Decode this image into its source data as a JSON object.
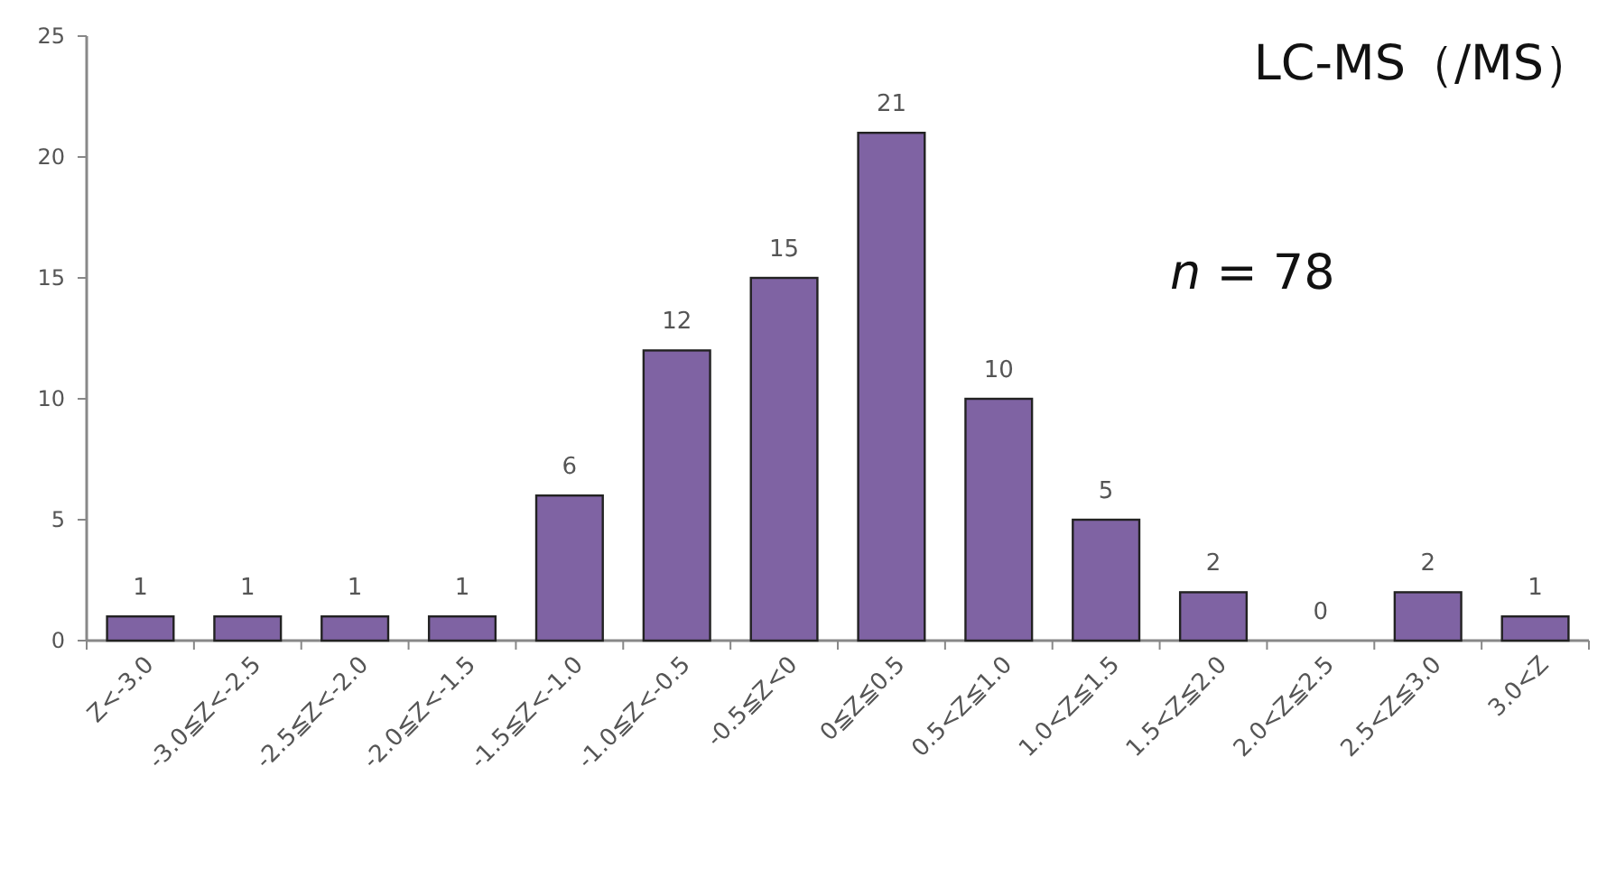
{
  "chart_data": {
    "type": "bar",
    "title": "LC-MS（/MS）",
    "annotations": [
      "*n* = 78"
    ],
    "categories": [
      "Z<-3.0",
      "-3.0≦Z<-2.5",
      "-2.5≦Z<-2.0",
      "-2.0≦Z<-1.5",
      "-1.5≦Z<-1.0",
      "-1.0≦Z<-0.5",
      "-0.5≦Z<0",
      "0≦Z≦0.5",
      "0.5<Z≦1.0",
      "1.0<Z≦1.5",
      "1.5<Z≦2.0",
      "2.0<Z≦2.5",
      "2.5<Z≦3.0",
      "3.0<Z"
    ],
    "values": [
      1,
      1,
      1,
      1,
      6,
      12,
      15,
      21,
      10,
      5,
      2,
      0,
      2,
      1
    ],
    "color": "#7f63a3",
    "ylim": [
      0,
      25
    ],
    "yticks": [
      0,
      5,
      10,
      15,
      20,
      25
    ],
    "data_labels": true
  }
}
